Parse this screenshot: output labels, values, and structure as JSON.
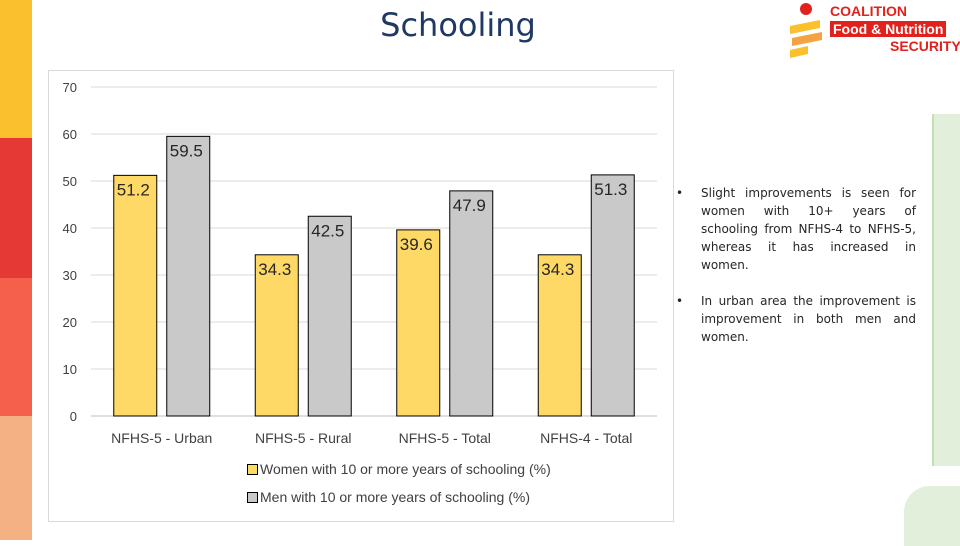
{
  "slide": {
    "title": "Schooling",
    "side_strip_colors": [
      "#fbc02d",
      "#e53935",
      "#f4604c",
      "#f4b183"
    ],
    "accent": "#e2211c"
  },
  "logo": {
    "line1": "COALITION",
    "line2": "Food & Nutrition",
    "line3": "SECURITY"
  },
  "chart_data": {
    "type": "bar",
    "title": "",
    "xlabel": "",
    "ylabel": "",
    "categories": [
      "NFHS-5 - Urban",
      "NFHS-5 - Rural",
      "NFHS-5 - Total",
      "NFHS-4 - Total"
    ],
    "series": [
      {
        "name": "Women with 10 or more years of schooling (%)",
        "values": [
          51.2,
          34.3,
          39.6,
          34.3
        ],
        "color": "#ffd966"
      },
      {
        "name": "Men with 10 or more years of schooling (%)",
        "values": [
          59.5,
          42.5,
          47.9,
          51.3
        ],
        "color": "#c9c9c9"
      }
    ],
    "ylim": [
      0,
      70
    ],
    "yticks": [
      0,
      10,
      20,
      30,
      40,
      50,
      60,
      70
    ],
    "grid": true,
    "legend": "bottom",
    "data_labels": "inside-top-left"
  },
  "notes": {
    "bullet": "•",
    "items": [
      "Slight improvements is seen for women with 10+ years of schooling from NFHS-4 to NFHS-5, whereas it has increased in women.",
      "In urban area the improvement is improvement in both men and women."
    ]
  }
}
